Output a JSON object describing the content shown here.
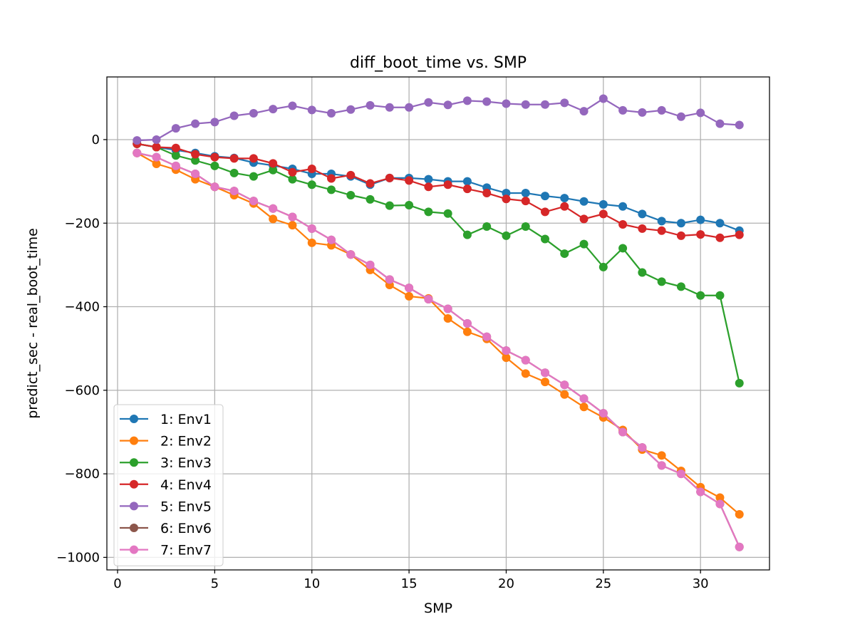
{
  "chart_data": {
    "type": "line",
    "title": "diff_boot_time vs. SMP",
    "xlabel": "SMP",
    "ylabel": "predict_sec - real_boot_time",
    "xlim": [
      -0.55,
      33.55
    ],
    "ylim": [
      -1030,
      150
    ],
    "xticks": [
      0,
      5,
      10,
      15,
      20,
      25,
      30
    ],
    "yticks": [
      -1000,
      -800,
      -600,
      -400,
      -200,
      0
    ],
    "grid": true,
    "legend_position": "lower-left",
    "x": [
      1,
      2,
      3,
      4,
      5,
      6,
      7,
      8,
      9,
      10,
      11,
      12,
      13,
      14,
      15,
      16,
      17,
      18,
      19,
      20,
      21,
      22,
      23,
      24,
      25,
      26,
      27,
      28,
      29,
      30,
      31,
      32
    ],
    "series": [
      {
        "name": "1: Env1",
        "color": "#1f77b4",
        "values": [
          -10,
          -18,
          -25,
          -32,
          -40,
          -44,
          -55,
          -62,
          -70,
          -82,
          -82,
          -88,
          -108,
          -92,
          -92,
          -95,
          -100,
          -100,
          -115,
          -128,
          -128,
          -135,
          -140,
          -148,
          -155,
          -160,
          -178,
          -195,
          -200,
          -192,
          -200,
          -218
        ]
      },
      {
        "name": "2: Env2",
        "color": "#ff7f0e",
        "values": [
          -32,
          -58,
          -72,
          -95,
          -113,
          -133,
          -153,
          -190,
          -205,
          -247,
          -253,
          -275,
          -312,
          -348,
          -375,
          -380,
          -428,
          -460,
          -477,
          -522,
          -560,
          -580,
          -610,
          -640,
          -665,
          -695,
          -742,
          -756,
          -793,
          -832,
          -857,
          -897
        ]
      },
      {
        "name": "3: Env3",
        "color": "#2ca02c",
        "values": [
          -10,
          -18,
          -38,
          -50,
          -63,
          -80,
          -88,
          -73,
          -95,
          -108,
          -120,
          -133,
          -143,
          -158,
          -157,
          -173,
          -177,
          -228,
          -208,
          -230,
          -208,
          -238,
          -273,
          -250,
          -305,
          -260,
          -318,
          -340,
          -352,
          -373,
          -373,
          -583
        ]
      },
      {
        "name": "4: Env4",
        "color": "#d62728",
        "values": [
          -10,
          -18,
          -20,
          -35,
          -42,
          -45,
          -45,
          -57,
          -78,
          -70,
          -93,
          -85,
          -105,
          -92,
          -98,
          -113,
          -108,
          -118,
          -128,
          -142,
          -147,
          -173,
          -160,
          -190,
          -178,
          -203,
          -213,
          -218,
          -230,
          -227,
          -235,
          -228
        ]
      },
      {
        "name": "5: Env5",
        "color": "#9467bd",
        "values": [
          -2,
          0,
          27,
          38,
          42,
          57,
          63,
          73,
          81,
          71,
          63,
          72,
          82,
          77,
          77,
          89,
          83,
          93,
          91,
          86,
          84,
          84,
          88,
          68,
          98,
          70,
          65,
          70,
          55,
          64,
          38,
          35
        ]
      },
      {
        "name": "6: Env6",
        "color": "#8c564b",
        "values": [
          -32,
          -42,
          -63,
          -82,
          -113,
          -123,
          -147,
          -165,
          -185,
          -213,
          -240,
          -275,
          -300,
          -335,
          -355,
          -382,
          -405,
          -440,
          -472,
          -505,
          -528,
          -558,
          -587,
          -620,
          -655,
          -700,
          -737,
          -780,
          -800,
          -843,
          -872,
          -975
        ]
      },
      {
        "name": "7: Env7",
        "color": "#e377c2",
        "values": [
          -32,
          -42,
          -63,
          -82,
          -113,
          -123,
          -147,
          -165,
          -185,
          -213,
          -240,
          -275,
          -300,
          -335,
          -355,
          -382,
          -405,
          -440,
          -472,
          -505,
          -528,
          -558,
          -587,
          -620,
          -655,
          -700,
          -737,
          -780,
          -800,
          -843,
          -872,
          -975
        ]
      }
    ]
  }
}
